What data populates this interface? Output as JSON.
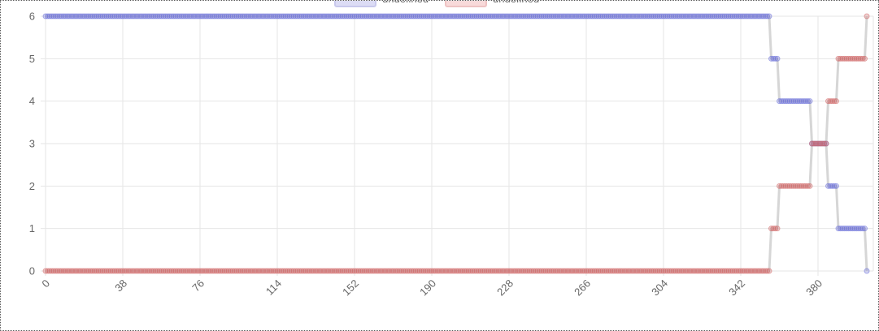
{
  "chart_data": {
    "type": "line",
    "legend": {
      "placement": "top-center",
      "entries": [
        {
          "label": "undefined",
          "fill": "#dcdcf5",
          "stroke": "#c9c9ec"
        },
        {
          "label": "undefined",
          "fill": "#f8dada",
          "stroke": "#eec3c3"
        }
      ]
    },
    "x_tick_labels": [
      "0",
      "38",
      "76",
      "114",
      "152",
      "190",
      "228",
      "266",
      "304",
      "342",
      "380"
    ],
    "y_tick_labels": [
      "0",
      "1",
      "2",
      "3",
      "4",
      "5",
      "6"
    ],
    "xlim": [
      0,
      400
    ],
    "ylim": [
      0,
      6
    ],
    "grid": true,
    "colors": {
      "blue_points": "#6a70d8",
      "red_points": "#d06666",
      "connector": "#d6d6d6",
      "grid": "#e6e6e6"
    },
    "series": [
      {
        "color": "#6a70d8",
        "segments": [
          {
            "x0": 0,
            "x1": 356,
            "y": 6
          },
          {
            "x0": 357,
            "x1": 360,
            "y": 5
          },
          {
            "x0": 361,
            "x1": 376,
            "y": 4
          },
          {
            "x0": 377,
            "x1": 384,
            "y": 3
          },
          {
            "x0": 385,
            "x1": 389,
            "y": 2
          },
          {
            "x0": 390,
            "x1": 403,
            "y": 1
          },
          {
            "x0": 404,
            "x1": 404,
            "y": 0
          }
        ]
      },
      {
        "color": "#d06666",
        "segments": [
          {
            "x0": 0,
            "x1": 356,
            "y": 0
          },
          {
            "x0": 357,
            "x1": 360,
            "y": 1
          },
          {
            "x0": 361,
            "x1": 376,
            "y": 2
          },
          {
            "x0": 377,
            "x1": 384,
            "y": 3
          },
          {
            "x0": 385,
            "x1": 389,
            "y": 4
          },
          {
            "x0": 390,
            "x1": 403,
            "y": 5
          },
          {
            "x0": 404,
            "x1": 404,
            "y": 6
          }
        ]
      }
    ]
  }
}
